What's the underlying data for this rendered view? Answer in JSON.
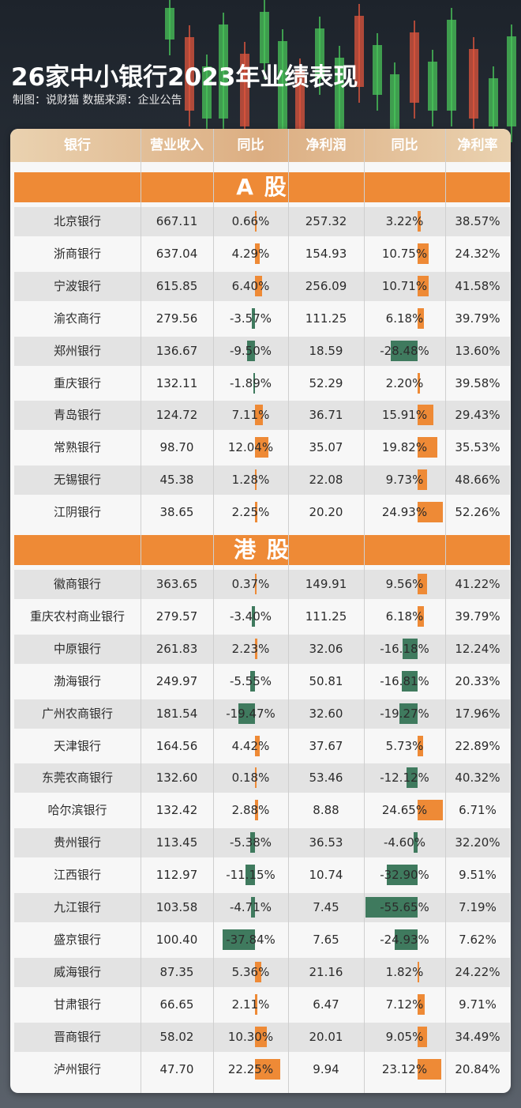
{
  "title": "26家中小银行2023年业绩表现",
  "subtitle": "制图：说财猫  数据来源：企业公告",
  "colors": {
    "positive": "#ee8a36",
    "negative": "#3f7a5e",
    "section": "#ee8a36"
  },
  "chart_data": {
    "type": "table",
    "columns": [
      "银行",
      "营业收入",
      "同比",
      "净利润",
      "同比",
      "净利率"
    ],
    "sections": [
      {
        "name": "A 股",
        "rows": [
          {
            "bank": "北京银行",
            "revenue": "667.11",
            "rev_yoy": "0.66%",
            "profit": "257.32",
            "profit_yoy": "3.22%",
            "margin": "38.57%"
          },
          {
            "bank": "浙商银行",
            "revenue": "637.04",
            "rev_yoy": "4.29%",
            "profit": "154.93",
            "profit_yoy": "10.75%",
            "margin": "24.32%"
          },
          {
            "bank": "宁波银行",
            "revenue": "615.85",
            "rev_yoy": "6.40%",
            "profit": "256.09",
            "profit_yoy": "10.71%",
            "margin": "41.58%"
          },
          {
            "bank": "渝农商行",
            "revenue": "279.56",
            "rev_yoy": "-3.57%",
            "profit": "111.25",
            "profit_yoy": "6.18%",
            "margin": "39.79%"
          },
          {
            "bank": "郑州银行",
            "revenue": "136.67",
            "rev_yoy": "-9.50%",
            "profit": "18.59",
            "profit_yoy": "-28.48%",
            "margin": "13.60%"
          },
          {
            "bank": "重庆银行",
            "revenue": "132.11",
            "rev_yoy": "-1.89%",
            "profit": "52.29",
            "profit_yoy": "2.20%",
            "margin": "39.58%"
          },
          {
            "bank": "青岛银行",
            "revenue": "124.72",
            "rev_yoy": "7.11%",
            "profit": "36.71",
            "profit_yoy": "15.91%",
            "margin": "29.43%"
          },
          {
            "bank": "常熟银行",
            "revenue": "98.70",
            "rev_yoy": "12.04%",
            "profit": "35.07",
            "profit_yoy": "19.82%",
            "margin": "35.53%"
          },
          {
            "bank": "无锡银行",
            "revenue": "45.38",
            "rev_yoy": "1.28%",
            "profit": "22.08",
            "profit_yoy": "9.73%",
            "margin": "48.66%"
          },
          {
            "bank": "江阴银行",
            "revenue": "38.65",
            "rev_yoy": "2.25%",
            "profit": "20.20",
            "profit_yoy": "24.93%",
            "margin": "52.26%"
          }
        ]
      },
      {
        "name": "港 股",
        "rows": [
          {
            "bank": "徽商银行",
            "revenue": "363.65",
            "rev_yoy": "0.37%",
            "profit": "149.91",
            "profit_yoy": "9.56%",
            "margin": "41.22%"
          },
          {
            "bank": "重庆农村商业银行",
            "revenue": "279.57",
            "rev_yoy": "-3.40%",
            "profit": "111.25",
            "profit_yoy": "6.18%",
            "margin": "39.79%"
          },
          {
            "bank": "中原银行",
            "revenue": "261.83",
            "rev_yoy": "2.23%",
            "profit": "32.06",
            "profit_yoy": "-16.18%",
            "margin": "12.24%"
          },
          {
            "bank": "渤海银行",
            "revenue": "249.97",
            "rev_yoy": "-5.55%",
            "profit": "50.81",
            "profit_yoy": "-16.81%",
            "margin": "20.33%"
          },
          {
            "bank": "广州农商银行",
            "revenue": "181.54",
            "rev_yoy": "-19.47%",
            "profit": "32.60",
            "profit_yoy": "-19.27%",
            "margin": "17.96%"
          },
          {
            "bank": "天津银行",
            "revenue": "164.56",
            "rev_yoy": "4.42%",
            "profit": "37.67",
            "profit_yoy": "5.73%",
            "margin": "22.89%"
          },
          {
            "bank": "东莞农商银行",
            "revenue": "132.60",
            "rev_yoy": "0.18%",
            "profit": "53.46",
            "profit_yoy": "-12.12%",
            "margin": "40.32%"
          },
          {
            "bank": "哈尔滨银行",
            "revenue": "132.42",
            "rev_yoy": "2.88%",
            "profit": "8.88",
            "profit_yoy": "24.65%",
            "margin": "6.71%"
          },
          {
            "bank": "贵州银行",
            "revenue": "113.45",
            "rev_yoy": "-5.38%",
            "profit": "36.53",
            "profit_yoy": "-4.60%",
            "margin": "32.20%"
          },
          {
            "bank": "江西银行",
            "revenue": "112.97",
            "rev_yoy": "-11.15%",
            "profit": "10.74",
            "profit_yoy": "-32.90%",
            "margin": "9.51%"
          },
          {
            "bank": "九江银行",
            "revenue": "103.58",
            "rev_yoy": "-4.71%",
            "profit": "7.45",
            "profit_yoy": "-55.65%",
            "margin": "7.19%"
          },
          {
            "bank": "盛京银行",
            "revenue": "100.40",
            "rev_yoy": "-37.84%",
            "profit": "7.65",
            "profit_yoy": "-24.93%",
            "margin": "7.62%"
          },
          {
            "bank": "威海银行",
            "revenue": "87.35",
            "rev_yoy": "5.36%",
            "profit": "21.16",
            "profit_yoy": "1.82%",
            "margin": "24.22%"
          },
          {
            "bank": "甘肃银行",
            "revenue": "66.65",
            "rev_yoy": "2.11%",
            "profit": "6.47",
            "profit_yoy": "7.12%",
            "margin": "9.71%"
          },
          {
            "bank": "晋商银行",
            "revenue": "58.02",
            "rev_yoy": "10.30%",
            "profit": "20.01",
            "profit_yoy": "9.05%",
            "margin": "34.49%"
          },
          {
            "bank": "泸州银行",
            "revenue": "47.70",
            "rev_yoy": "22.25%",
            "profit": "9.94",
            "profit_yoy": "23.12%",
            "margin": "20.84%"
          }
        ]
      }
    ]
  }
}
